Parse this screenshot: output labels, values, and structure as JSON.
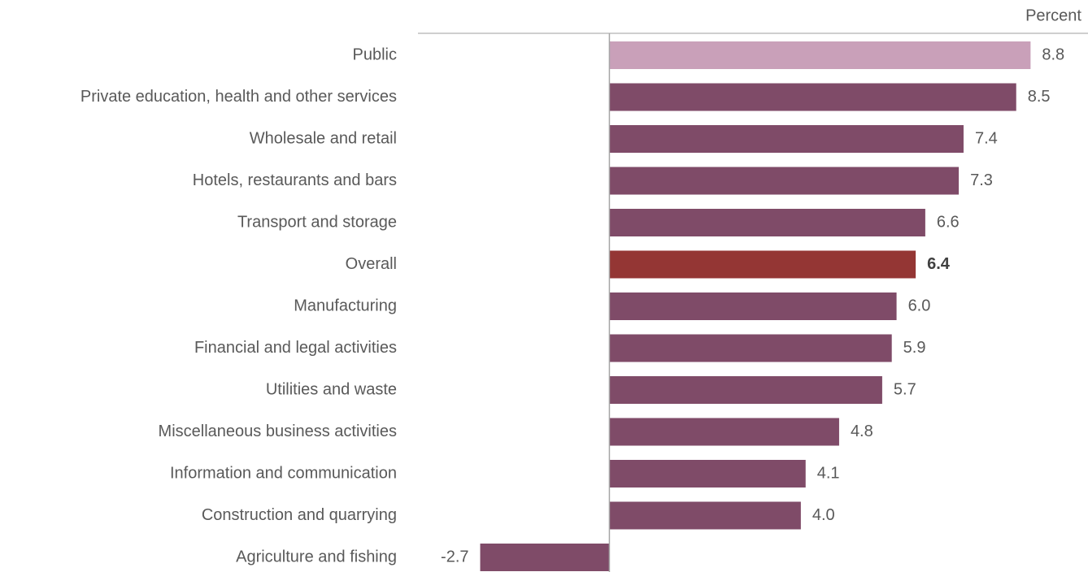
{
  "chart_data": {
    "type": "barh",
    "x_label": "Percent",
    "categories": [
      "Public",
      "Private education, health and other services",
      "Wholesale and retail",
      "Hotels, restaurants and bars",
      "Transport and storage",
      "Overall",
      "Manufacturing",
      "Financial and legal activities",
      "Utilities and waste",
      "Miscellaneous business activities",
      "Information and communication",
      "Construction and quarrying",
      "Agriculture and fishing"
    ],
    "values": [
      8.8,
      8.5,
      7.4,
      7.3,
      6.6,
      6.4,
      6.0,
      5.9,
      5.7,
      4.8,
      4.1,
      4.0,
      -2.7
    ],
    "value_labels": [
      "8.8",
      "8.5",
      "7.4",
      "7.3",
      "6.6",
      "6.4",
      "6.0",
      "5.9",
      "5.7",
      "4.8",
      "4.1",
      "4.0",
      "-2.7"
    ],
    "colors": [
      "#c9a0b9",
      "#7f4b68",
      "#7f4b68",
      "#7f4b68",
      "#7f4b68",
      "#943634",
      "#7f4b68",
      "#7f4b68",
      "#7f4b68",
      "#7f4b68",
      "#7f4b68",
      "#7f4b68",
      "#7f4b68"
    ],
    "value_label_weights": [
      "normal",
      "normal",
      "normal",
      "normal",
      "normal",
      "bold",
      "normal",
      "normal",
      "normal",
      "normal",
      "normal",
      "normal",
      "normal"
    ],
    "xlim": [
      -4,
      10
    ]
  }
}
